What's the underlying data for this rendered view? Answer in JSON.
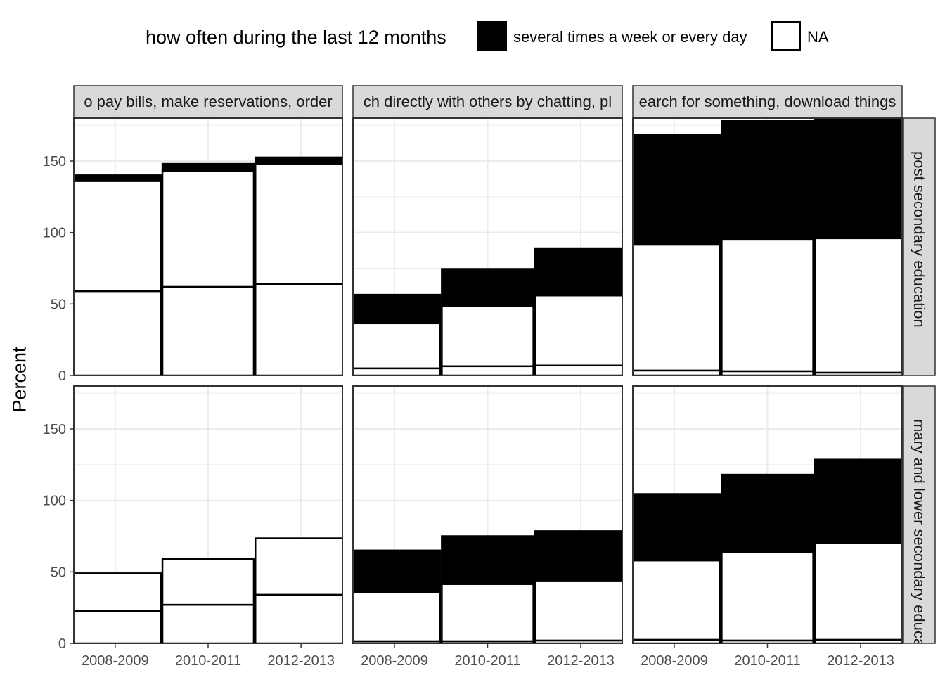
{
  "legend": {
    "title": "how often during the last 12 months",
    "items": [
      {
        "label": "several times a week or every day",
        "fill": "#000000"
      },
      {
        "label": "NA",
        "fill": "#ffffff"
      }
    ]
  },
  "chart_data": {
    "type": "bar",
    "stacked": true,
    "ylabel": "Percent",
    "ylim": [
      0,
      180
    ],
    "y_ticks": [
      0,
      50,
      100,
      150
    ],
    "categories": [
      "2008-2009",
      "2010-2011",
      "2012-2013"
    ],
    "grid": true,
    "legend_position": "top",
    "colors": {
      "several times a week or every day": "#000000",
      "NA": "#ffffff",
      "strip": "#d9d9d9",
      "grid": "#ebebeb"
    },
    "columns": [
      "o pay bills, make reservations, order",
      "ch directly with others by chatting, pl",
      "earch for something, download things"
    ],
    "rows": [
      "post secondary education",
      "mary and lower secondary educati"
    ],
    "segment_order_bottom_to_top": [
      "other",
      "NA",
      "several times a week or every day"
    ],
    "panels": [
      {
        "row": 0,
        "col": 0,
        "bars": [
          {
            "category": "2008-2009",
            "other": 59,
            "NA": 77,
            "several": 4
          },
          {
            "category": "2010-2011",
            "other": 62,
            "NA": 81,
            "several": 5
          },
          {
            "category": "2012-2013",
            "other": 64,
            "NA": 84,
            "several": 4.5
          }
        ]
      },
      {
        "row": 0,
        "col": 1,
        "bars": [
          {
            "category": "2008-2009",
            "other": 5,
            "NA": 31.5,
            "several": 20
          },
          {
            "category": "2010-2011",
            "other": 6.5,
            "NA": 42,
            "several": 26
          },
          {
            "category": "2012-2013",
            "other": 7,
            "NA": 49,
            "several": 33
          }
        ]
      },
      {
        "row": 0,
        "col": 2,
        "bars": [
          {
            "category": "2008-2009",
            "other": 3.5,
            "NA": 88,
            "several": 77
          },
          {
            "category": "2010-2011",
            "other": 3,
            "NA": 92,
            "several": 83
          },
          {
            "category": "2012-2013",
            "other": 2,
            "NA": 94,
            "several": 86
          }
        ]
      },
      {
        "row": 1,
        "col": 0,
        "bars": [
          {
            "category": "2008-2009",
            "other": 22.5,
            "NA": 26.5,
            "several": 0
          },
          {
            "category": "2010-2011",
            "other": 27,
            "NA": 32,
            "several": 0
          },
          {
            "category": "2012-2013",
            "other": 34,
            "NA": 39.5,
            "several": 0
          }
        ]
      },
      {
        "row": 1,
        "col": 1,
        "bars": [
          {
            "category": "2008-2009",
            "other": 1.5,
            "NA": 34.5,
            "several": 29
          },
          {
            "category": "2010-2011",
            "other": 1.5,
            "NA": 40,
            "several": 33.5
          },
          {
            "category": "2012-2013",
            "other": 2,
            "NA": 41.5,
            "several": 35
          }
        ]
      },
      {
        "row": 1,
        "col": 2,
        "bars": [
          {
            "category": "2008-2009",
            "other": 2.5,
            "NA": 55.5,
            "several": 46.5
          },
          {
            "category": "2010-2011",
            "other": 2,
            "NA": 62,
            "several": 54
          },
          {
            "category": "2012-2013",
            "other": 2.5,
            "NA": 67.5,
            "several": 58.5
          }
        ]
      }
    ]
  }
}
